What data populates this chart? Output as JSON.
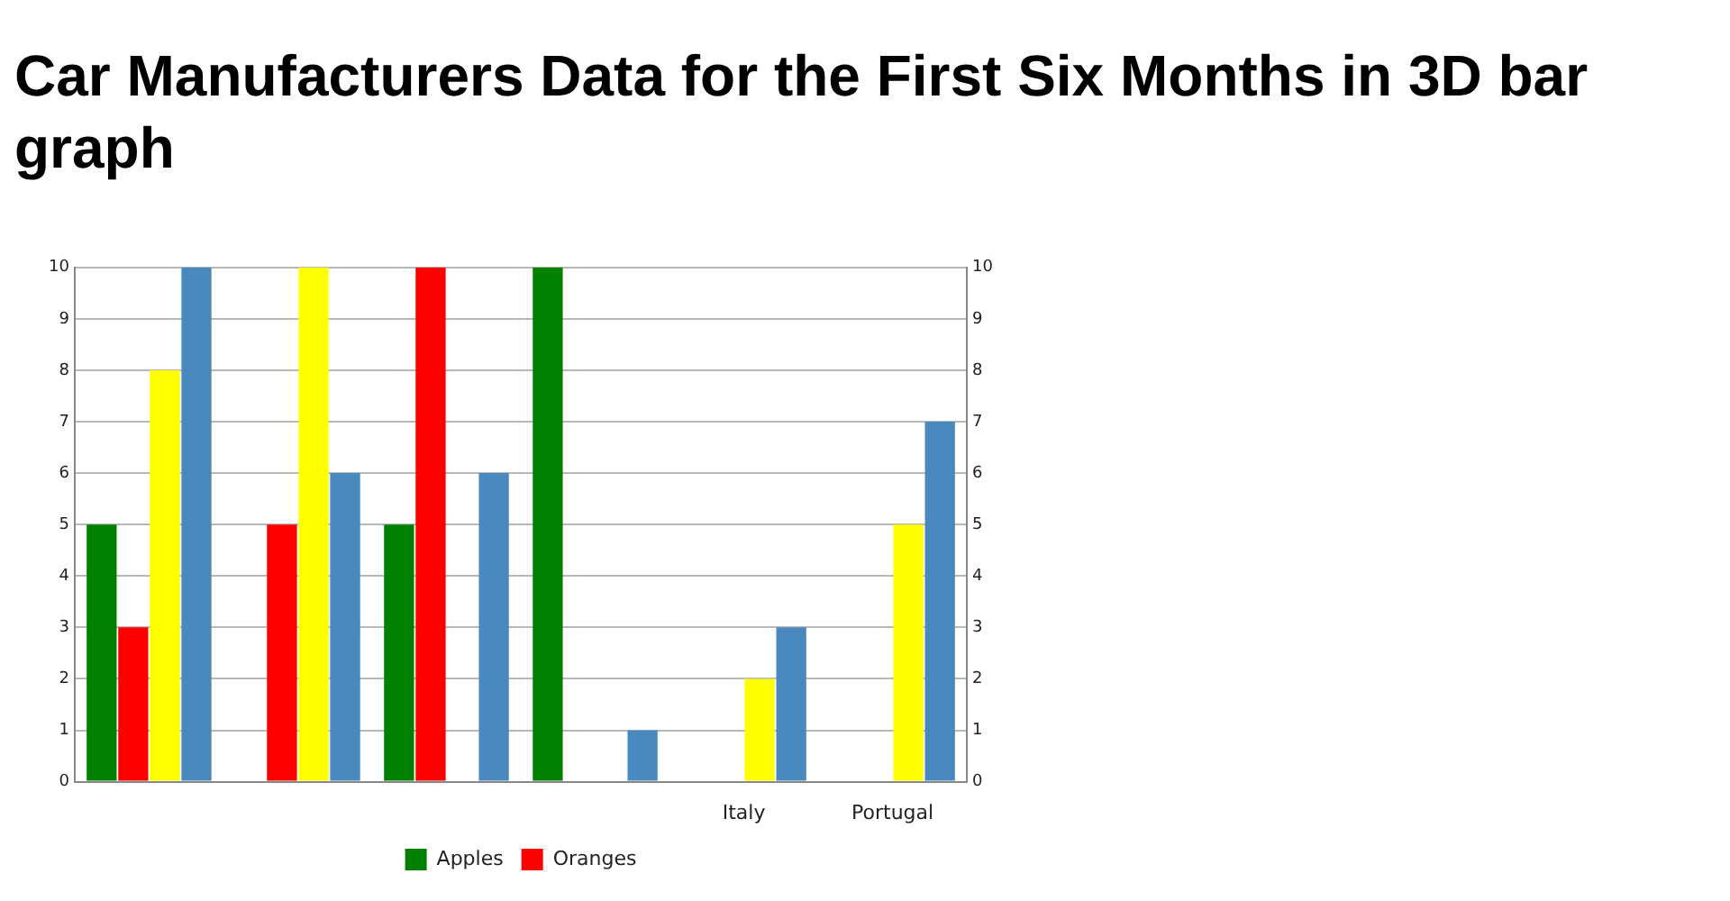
{
  "chart_data": {
    "type": "bar",
    "title": "Car Manufacturers Data for the First Six Months in 3D bar graph",
    "categories": [
      null,
      null,
      null,
      null,
      "Italy",
      "Portugal"
    ],
    "series": [
      {
        "name": "Apples",
        "color": "#008000",
        "values": [
          5,
          null,
          5,
          10,
          null,
          null
        ]
      },
      {
        "name": "Oranges",
        "color": "#ff0000",
        "values": [
          3,
          5,
          10,
          null,
          null,
          null
        ]
      },
      {
        "color": "#ffff00",
        "values": [
          8,
          10,
          null,
          null,
          2,
          5
        ]
      },
      {
        "color": "#4a89be",
        "values": [
          10,
          6,
          6,
          1,
          3,
          7
        ]
      }
    ],
    "ylim": [
      0,
      10
    ],
    "yticks": [
      0,
      1,
      2,
      3,
      4,
      5,
      6,
      7,
      8,
      9,
      10
    ],
    "y2lim": [
      0,
      10
    ],
    "y2ticks": [
      0,
      1,
      2,
      3,
      4,
      5,
      6,
      7,
      8,
      9,
      10
    ],
    "grid": "y",
    "legend": "bottom"
  }
}
